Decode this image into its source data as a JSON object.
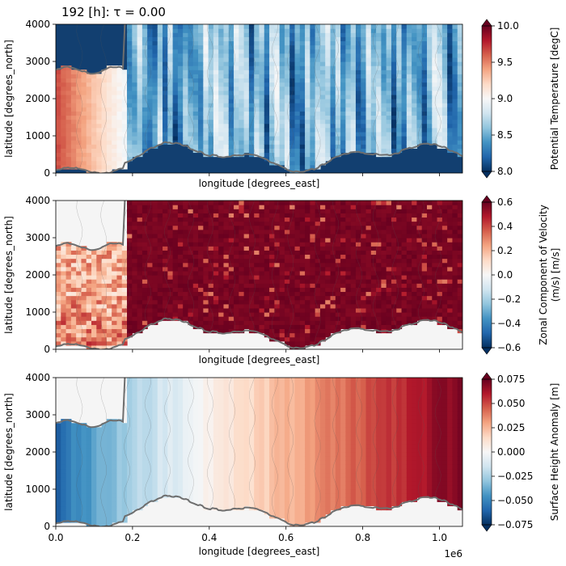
{
  "title": "192 [h]: τ = 0.00",
  "chart_data": [
    {
      "type": "heatmap",
      "xlabel": "longitude [degrees_east]",
      "ylabel": "latitude [degrees_north]",
      "xlim": [
        0,
        1060000
      ],
      "ylim": [
        0,
        4000
      ],
      "xticks": [
        0,
        200000,
        400000,
        600000,
        800000,
        1000000
      ],
      "xticklabels": [
        "",
        "",
        "",
        "",
        "",
        ""
      ],
      "yticks": [
        0,
        1000,
        2000,
        3000,
        4000
      ],
      "yticklabels": [
        "0",
        "1000",
        "2000",
        "3000",
        "4000"
      ],
      "colorbar": {
        "label": "Potential Temperature [degC]",
        "cmap": "RdBu_r",
        "vmin": 8.0,
        "vmax": 10.0,
        "ticks": [
          8.0,
          8.5,
          9.0,
          9.5,
          10.0
        ],
        "ticklabels": [
          "8.0",
          "8.5",
          "9.0",
          "9.5",
          "10.0"
        ]
      },
      "field": "temperature",
      "landmask_color": "#123f70",
      "coast_color": "#6e6e6e"
    },
    {
      "type": "heatmap",
      "xlabel": "longitude [degrees_east]",
      "ylabel": "latitude [degrees_north]",
      "xlim": [
        0,
        1060000
      ],
      "ylim": [
        0,
        4000
      ],
      "xticks": [
        0,
        200000,
        400000,
        600000,
        800000,
        1000000
      ],
      "xticklabels": [
        "",
        "",
        "",
        "",
        "",
        ""
      ],
      "yticks": [
        0,
        1000,
        2000,
        3000,
        4000
      ],
      "yticklabels": [
        "0",
        "1000",
        "2000",
        "3000",
        "4000"
      ],
      "colorbar": {
        "label": "Zonal Component of Velocity (m/s) [m/s]",
        "label_lines": [
          "Zonal Component of Velocity",
          "(m/s) [m/s]"
        ],
        "cmap": "RdBu_r",
        "vmin": -0.6,
        "vmax": 0.6,
        "ticks": [
          -0.6,
          -0.4,
          -0.2,
          0.0,
          0.2,
          0.4,
          0.6
        ],
        "ticklabels": [
          "−0.6",
          "−0.4",
          "−0.2",
          "0.0",
          "0.2",
          "0.4",
          "0.6"
        ]
      },
      "field": "velocity",
      "landmask_color": "#f5f5f5",
      "coast_color": "#6e6e6e"
    },
    {
      "type": "heatmap",
      "xlabel": "longitude [degrees_east]",
      "ylabel": "latitude [degrees_north]",
      "xlim": [
        0,
        1060000
      ],
      "ylim": [
        0,
        4000
      ],
      "xticks": [
        0,
        200000,
        400000,
        600000,
        800000,
        1000000
      ],
      "xticklabels": [
        "0.0",
        "0.2",
        "0.4",
        "0.6",
        "0.8",
        "1.0"
      ],
      "offset_text": "1e6",
      "yticks": [
        0,
        1000,
        2000,
        3000,
        4000
      ],
      "yticklabels": [
        "0",
        "1000",
        "2000",
        "3000",
        "4000"
      ],
      "colorbar": {
        "label": "Surface Height Anomaly [m]",
        "cmap": "RdBu_r",
        "vmin": -0.075,
        "vmax": 0.075,
        "ticks": [
          -0.075,
          -0.05,
          -0.025,
          0.0,
          0.025,
          0.05,
          0.075
        ],
        "ticklabels": [
          "−0.075",
          "−0.050",
          "−0.025",
          "0.000",
          "0.025",
          "0.050",
          "0.075"
        ]
      },
      "field": "ssh",
      "landmask_color": "#f5f5f5",
      "coast_color": "#6e6e6e"
    }
  ]
}
